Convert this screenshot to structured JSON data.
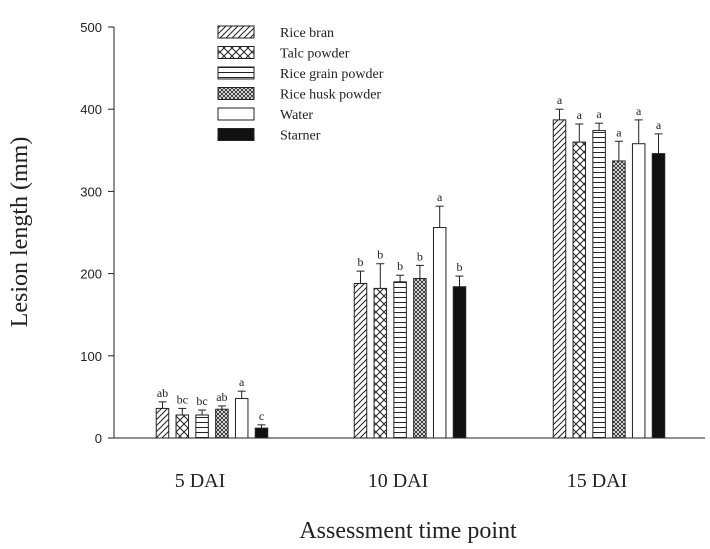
{
  "chart_data": {
    "type": "bar",
    "xlabel": "Assessment time point",
    "ylabel": "Lesion length (mm)",
    "ylim": [
      0,
      500
    ],
    "yticks": [
      0,
      100,
      200,
      300,
      400,
      500
    ],
    "categories": [
      "5 DAI",
      "10 DAI",
      "15 DAI"
    ],
    "legend_position": "top-left",
    "series": [
      {
        "name": "Rice bran",
        "pattern": "diagonal-hatch",
        "values": [
          36,
          188,
          387
        ],
        "errors": [
          8,
          15,
          13
        ],
        "labels": [
          "ab",
          "b",
          "a"
        ]
      },
      {
        "name": "Talc powder",
        "pattern": "cross-hatch",
        "values": [
          28,
          182,
          360
        ],
        "errors": [
          8,
          30,
          22
        ],
        "labels": [
          "bc",
          "b",
          "a"
        ]
      },
      {
        "name": "Rice grain powder",
        "pattern": "horizontal-lines",
        "values": [
          28,
          190,
          374
        ],
        "errors": [
          6,
          8,
          9
        ],
        "labels": [
          "bc",
          "b",
          "a"
        ]
      },
      {
        "name": "Rice husk powder",
        "pattern": "dense-cross-hatch",
        "values": [
          35,
          194,
          337
        ],
        "errors": [
          4,
          16,
          24
        ],
        "labels": [
          "ab",
          "b",
          "a"
        ]
      },
      {
        "name": "Water",
        "pattern": "empty",
        "values": [
          48,
          256,
          358
        ],
        "errors": [
          9,
          26,
          29
        ],
        "labels": [
          "a",
          "a",
          "a"
        ]
      },
      {
        "name": "Starner",
        "pattern": "solid-black",
        "values": [
          12,
          184,
          346
        ],
        "errors": [
          4,
          13,
          24
        ],
        "labels": [
          "c",
          "b",
          "a"
        ]
      }
    ]
  }
}
